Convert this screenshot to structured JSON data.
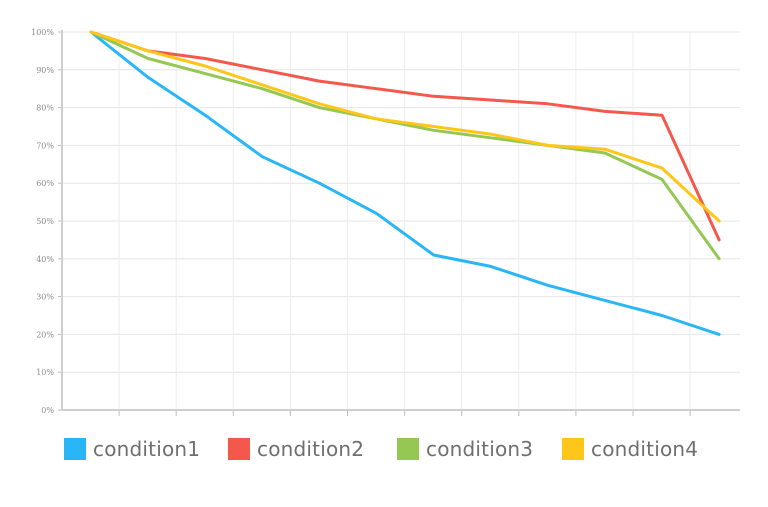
{
  "chart_data": {
    "type": "line",
    "title": "",
    "xlabel": "",
    "ylabel": "",
    "x": [
      1,
      2,
      3,
      4,
      5,
      6,
      7,
      8,
      9,
      10,
      11,
      12
    ],
    "x_tick_labels": [],
    "ylim": [
      0,
      100
    ],
    "y_ticks": [
      "0%",
      "10%",
      "20%",
      "30%",
      "40%",
      "50%",
      "60%",
      "70%",
      "80%",
      "90%",
      "100%"
    ],
    "y_format": "percent",
    "grid": true,
    "legend_position": "bottom",
    "series": [
      {
        "name": "condition1",
        "color": "#29b6f6",
        "values": [
          100,
          88,
          78,
          67,
          60,
          52,
          41,
          38,
          33,
          29,
          25,
          20
        ]
      },
      {
        "name": "condition2",
        "color": "#f4574b",
        "values": [
          100,
          95,
          93,
          90,
          87,
          85,
          83,
          82,
          81,
          79,
          78,
          45
        ]
      },
      {
        "name": "condition3",
        "color": "#95c753",
        "values": [
          100,
          93,
          89,
          85,
          80,
          77,
          74,
          72,
          70,
          68,
          61,
          40
        ]
      },
      {
        "name": "condition4",
        "color": "#ffc61a",
        "values": [
          100,
          95,
          91,
          86,
          81,
          77,
          75,
          73,
          70,
          69,
          64,
          50
        ]
      }
    ]
  },
  "legend": {
    "items": [
      {
        "label": "condition1",
        "color": "#29b6f6"
      },
      {
        "label": "condition2",
        "color": "#f4574b"
      },
      {
        "label": "condition3",
        "color": "#95c753"
      },
      {
        "label": "condition4",
        "color": "#ffc61a"
      }
    ]
  }
}
